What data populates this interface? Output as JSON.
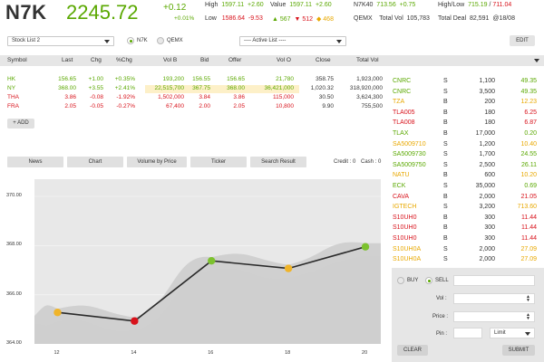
{
  "header": {
    "index_name": "N7K",
    "index_value": "2245.72",
    "index_change": "+0.12",
    "index_change_pct": "+0.01%",
    "high_label": "High",
    "high_value": "1597.11",
    "high_change": "+2.60",
    "low_label": "Low",
    "low_value": "1586.64",
    "low_change": "-9.53",
    "value_label": "Value",
    "value_value": "1597.11",
    "value_change": "+2.60",
    "adv_count": "567",
    "decl_count": "512",
    "unch_count": "468",
    "n7k40_label": "N7K40",
    "n7k40_value": "713.56",
    "n7k40_change": "+0.75",
    "hl_label": "High/Low",
    "hl_high": "715.19",
    "hl_low": "711.04",
    "qemx_label": "QEMX",
    "total_vol_label": "Total Vol",
    "total_vol_value": "105,783",
    "total_deal_label": "Total Deal",
    "total_deal_value": "82,591",
    "total_deal_suffix": "@18/08"
  },
  "toolbar": {
    "stock_list_value": "Stock List 2",
    "radio_n7k": "N7K",
    "radio_qemx": "QEMX",
    "active_list_value": "---- Active List ----",
    "edit_label": "EDIT"
  },
  "table": {
    "headers": [
      "Symbol",
      "Last",
      "Chg",
      "%Chg",
      "Vol B",
      "Bid",
      "Offer",
      "Vol O",
      "Close",
      "Total Vol"
    ],
    "rows": [
      {
        "symbol": "HK",
        "last": "156.65",
        "chg": "+1.00",
        "pchg": "+0.35%",
        "volb": "193,200",
        "bid": "156.55",
        "offer": "156.65",
        "volo": "21,780",
        "close": "358.75",
        "totalvol": "1,923,000",
        "color": "#5aa800"
      },
      {
        "symbol": "NY",
        "last": "368.00",
        "chg": "+3.55",
        "pchg": "+2.41%",
        "volb": "22,515,700",
        "bid": "367.75",
        "offer": "368.00",
        "volo": "36,421,000",
        "close": "1,020.32",
        "totalvol": "318,920,000",
        "color": "#5aa800"
      },
      {
        "symbol": "THA",
        "last": "3.86",
        "chg": "-0.08",
        "pchg": "-1.92%",
        "volb": "1,502,000",
        "bid": "3.84",
        "offer": "3.86",
        "volo": "115,000",
        "close": "30.50",
        "totalvol": "3,624,300",
        "color": "#d8121b"
      },
      {
        "symbol": "FRA",
        "last": "2.05",
        "chg": "-0.05",
        "pchg": "-0.27%",
        "volb": "67,400",
        "bid": "2.00",
        "offer": "2.05",
        "volo": "10,800",
        "close": "9.90",
        "totalvol": "755,500",
        "color": "#d8121b"
      }
    ],
    "add_label": "+ ADD"
  },
  "right_list": [
    {
      "symbol": "CNRC",
      "side": "S",
      "vol": "1,100",
      "price": "49.35",
      "color": "#5aa800"
    },
    {
      "symbol": "CNRC",
      "side": "S",
      "vol": "3,500",
      "price": "49.35",
      "color": "#5aa800"
    },
    {
      "symbol": "TZA",
      "side": "B",
      "vol": "200",
      "price": "12.23",
      "color": "#e8a800"
    },
    {
      "symbol": "TLA005",
      "side": "B",
      "vol": "180",
      "price": "6.25",
      "color": "#d8121b"
    },
    {
      "symbol": "TLA008",
      "side": "B",
      "vol": "180",
      "price": "6.87",
      "color": "#d8121b"
    },
    {
      "symbol": "TLAX",
      "side": "B",
      "vol": "17,000",
      "price": "0.20",
      "color": "#5aa800"
    },
    {
      "symbol": "SA5009710",
      "side": "S",
      "vol": "1,200",
      "price": "10.40",
      "color": "#e8a800"
    },
    {
      "symbol": "SA5009730",
      "side": "S",
      "vol": "1,700",
      "price": "24.55",
      "color": "#5aa800"
    },
    {
      "symbol": "SA5009750",
      "side": "S",
      "vol": "2,500",
      "price": "26.11",
      "color": "#5aa800"
    },
    {
      "symbol": "NATU",
      "side": "B",
      "vol": "600",
      "price": "10.20",
      "color": "#e8a800"
    },
    {
      "symbol": "ECK",
      "side": "S",
      "vol": "35,000",
      "price": "0.69",
      "color": "#5aa800"
    },
    {
      "symbol": "CAVA",
      "side": "B",
      "vol": "2,000",
      "price": "21.05",
      "color": "#d8121b"
    },
    {
      "symbol": "IGTECH",
      "side": "S",
      "vol": "3,200",
      "price": "713.60",
      "color": "#e8a800"
    },
    {
      "symbol": "S10UH0",
      "side": "B",
      "vol": "300",
      "price": "11.44",
      "color": "#d8121b"
    },
    {
      "symbol": "S10UH0",
      "side": "B",
      "vol": "300",
      "price": "11.44",
      "color": "#d8121b"
    },
    {
      "symbol": "S10UH0",
      "side": "B",
      "vol": "300",
      "price": "11.44",
      "color": "#d8121b"
    },
    {
      "symbol": "S10UH0A",
      "side": "S",
      "vol": "2,000",
      "price": "27.09",
      "color": "#e8a800"
    },
    {
      "symbol": "S10UH0A",
      "side": "S",
      "vol": "2,000",
      "price": "27.09",
      "color": "#e8a800"
    }
  ],
  "tabs": [
    "News",
    "Chart",
    "Volume by Price",
    "Ticker",
    "Search Result"
  ],
  "credit_label": "Credit : 0",
  "cash_label": "Cash : 0",
  "chart_data": {
    "type": "line",
    "x_ticks": [
      "12",
      "14",
      "16",
      "18",
      "20"
    ],
    "y_ticks": [
      "370.00",
      "368.00",
      "366.00",
      "364.00"
    ],
    "ylim": [
      364,
      370.7
    ],
    "xlim": [
      11.4,
      20.4
    ],
    "points": [
      {
        "x": 12,
        "y": 365.28,
        "color": "#f0b429"
      },
      {
        "x": 14,
        "y": 364.93,
        "color": "#d8121b"
      },
      {
        "x": 16,
        "y": 367.38,
        "color": "#7cc22e"
      },
      {
        "x": 18,
        "y": 367.07,
        "color": "#f0b429"
      },
      {
        "x": 20,
        "y": 367.95,
        "color": "#7cc22e"
      }
    ],
    "line_color": "#2a2a2a",
    "area_color": "#cfcfcf",
    "grid": true
  },
  "order": {
    "buy_label": "BUY",
    "sell_label": "SELL",
    "vol_label": "Vol :",
    "price_label": "Price :",
    "pin_label": "Pin :",
    "order_type_value": "Limit",
    "clear_label": "CLEAR",
    "submit_label": "SUBMIT"
  }
}
